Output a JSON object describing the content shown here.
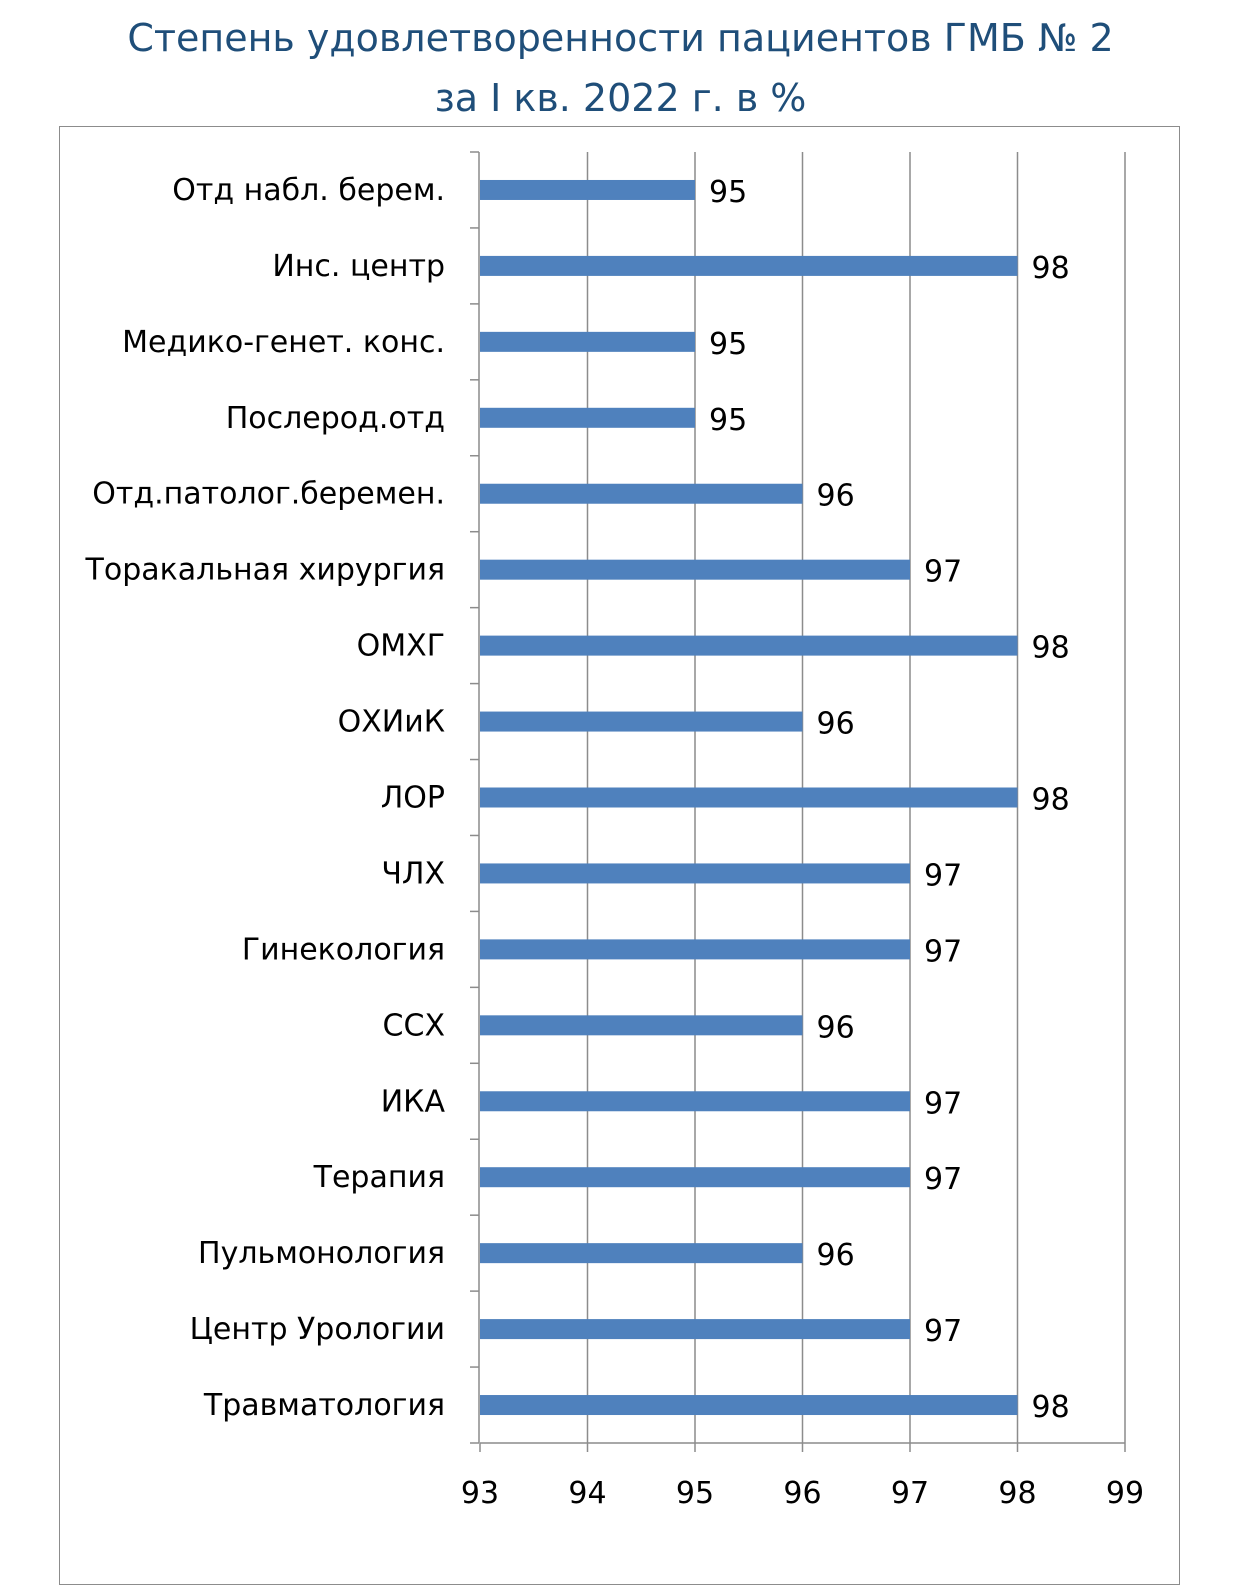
{
  "chart_data": {
    "type": "bar",
    "orientation": "horizontal",
    "title": "Степень удовлетворенности пациентов ГМБ № 2 за I кв. 2022 г. в %",
    "title_lines": [
      "Степень удовлетворенности пациентов ГМБ № 2",
      "за I кв. 2022 г. в %"
    ],
    "categories": [
      "Отд набл. берем.",
      "Инс. центр",
      "Медико-генет. конс.",
      "Послерод.отд",
      "Отд.патолог.беремен.",
      "Торакальная хирургия",
      "ОМХГ",
      "ОХИиК",
      "ЛОР",
      "ЧЛХ",
      "Гинекология",
      "ССХ",
      "ИКА",
      "Терапия",
      "Пульмонология",
      "Центр Урологии",
      "Травматология"
    ],
    "values": [
      95,
      98,
      95,
      95,
      96,
      97,
      98,
      96,
      98,
      97,
      97,
      96,
      97,
      97,
      96,
      97,
      98
    ],
    "xlim": [
      93,
      99
    ],
    "xticks": [
      93,
      94,
      95,
      96,
      97,
      98,
      99
    ],
    "grid": true,
    "data_labels": true,
    "legend": "none",
    "bar_color": "#4f81bd",
    "title_color": "#1f4e79"
  }
}
